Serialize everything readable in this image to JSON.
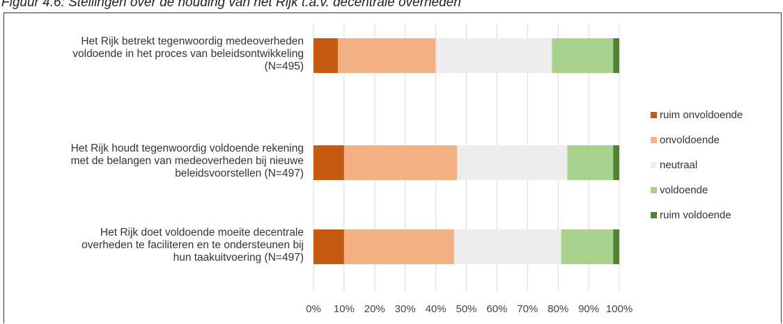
{
  "caption": "Figuur 4.6: Stellingen over de houding van het Rijk t.a.v. decentrale overheden",
  "chart_data": {
    "type": "bar",
    "orientation": "horizontal",
    "stacked": "percent",
    "title": "",
    "xlabel": "",
    "ylabel": "",
    "xlim": [
      0,
      100
    ],
    "x_ticks": [
      "0%",
      "10%",
      "20%",
      "30%",
      "40%",
      "50%",
      "60%",
      "70%",
      "80%",
      "90%",
      "100%"
    ],
    "grid": "vertical",
    "legend_position": "right",
    "categories": [
      "Het Rijk betrekt tegenwoordig medeoverheden voldoende in het proces van beleidsontwikkeling (N=495)",
      "Het Rijk houdt tegenwoordig voldoende rekening met de belangen van medeoverheden bij nieuwe beleidsvoorstellen (N=497)",
      "Het Rijk doet voldoende moeite decentrale overheden te faciliteren en te ondersteunen bij hun taakuitvoering (N=497)"
    ],
    "category_lines": [
      [
        "Het Rijk betrekt tegenwoordig medeoverheden",
        "voldoende in het proces van beleidsontwikkeling",
        "(N=495)"
      ],
      [
        "Het Rijk houdt tegenwoordig voldoende rekening",
        "met de belangen van medeoverheden bij nieuwe",
        "beleidsvoorstellen (N=497)"
      ],
      [
        "Het Rijk doet voldoende moeite decentrale",
        "overheden te faciliteren en te ondersteunen bij",
        "hun taakuitvoering (N=497)"
      ]
    ],
    "series": [
      {
        "name": "ruim onvoldoende",
        "color": "#c55a11",
        "values": [
          8,
          10,
          10
        ]
      },
      {
        "name": "onvoldoende",
        "color": "#f4b183",
        "values": [
          32,
          37,
          36
        ]
      },
      {
        "name": "neutraal",
        "color": "#ededed",
        "values": [
          38,
          36,
          35
        ]
      },
      {
        "name": "voldoende",
        "color": "#a9d18e",
        "values": [
          20,
          15,
          17
        ]
      },
      {
        "name": "ruim voldoende",
        "color": "#548235",
        "values": [
          2,
          2,
          2
        ]
      }
    ]
  }
}
